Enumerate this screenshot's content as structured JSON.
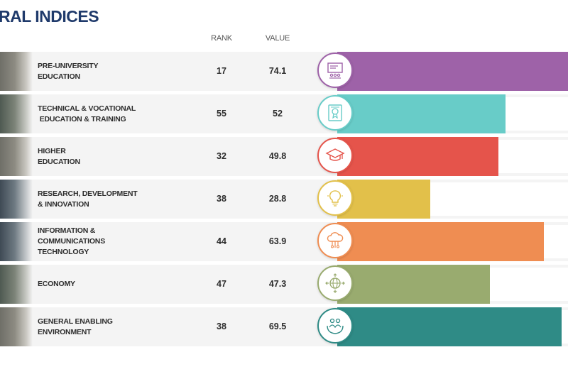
{
  "title": "RAL INDICES",
  "headers": {
    "rank": "RANK",
    "value": "VALUE"
  },
  "chart_data": {
    "type": "bar",
    "title": "RAL INDICES",
    "xlim": [
      0,
      100
    ],
    "categories": [
      "PRE-UNIVERSITY EDUCATION",
      "TECHNICAL & VOCATIONAL EDUCATION & TRAINING",
      "HIGHER EDUCATION",
      "RESEARCH, DEVELOPMENT & INNOVATION",
      "INFORMATION & COMMUNICATIONS TECHNOLOGY",
      "ECONOMY",
      "GENERAL ENABLING ENVIRONMENT"
    ],
    "rows": [
      {
        "label_lines": [
          "PRE-UNIVERSITY",
          "EDUCATION"
        ],
        "rank": "17",
        "value": 74.1,
        "value_text": "74.1",
        "color": "#9e62a8",
        "icon": "classroom-icon"
      },
      {
        "label_lines": [
          "TECHNICAL & VOCATIONAL",
          " EDUCATION & TRAINING"
        ],
        "rank": "55",
        "value": 52,
        "value_text": "52",
        "color": "#68ccc8",
        "icon": "certificate-icon"
      },
      {
        "label_lines": [
          "HIGHER",
          "EDUCATION"
        ],
        "rank": "32",
        "value": 49.8,
        "value_text": "49.8",
        "color": "#e5544b",
        "icon": "graduation-cap-icon"
      },
      {
        "label_lines": [
          "RESEARCH, DEVELOPMENT",
          "& INNOVATION"
        ],
        "rank": "38",
        "value": 28.8,
        "value_text": "28.8",
        "color": "#e2c04a",
        "icon": "lightbulb-icon"
      },
      {
        "label_lines": [
          "INFORMATION &",
          "COMMUNICATIONS",
          "TECHNOLOGY"
        ],
        "rank": "44",
        "value": 63.9,
        "value_text": "63.9",
        "color": "#ef8d52",
        "icon": "cloud-network-icon"
      },
      {
        "label_lines": [
          "ECONOMY"
        ],
        "rank": "47",
        "value": 47.3,
        "value_text": "47.3",
        "color": "#99ab6f",
        "icon": "globe-arrows-icon"
      },
      {
        "label_lines": [
          "GENERAL ENABLING",
          "ENVIRONMENT"
        ],
        "rank": "38",
        "value": 69.5,
        "value_text": "69.5",
        "color": "#2f8b86",
        "icon": "people-hands-icon"
      }
    ]
  }
}
